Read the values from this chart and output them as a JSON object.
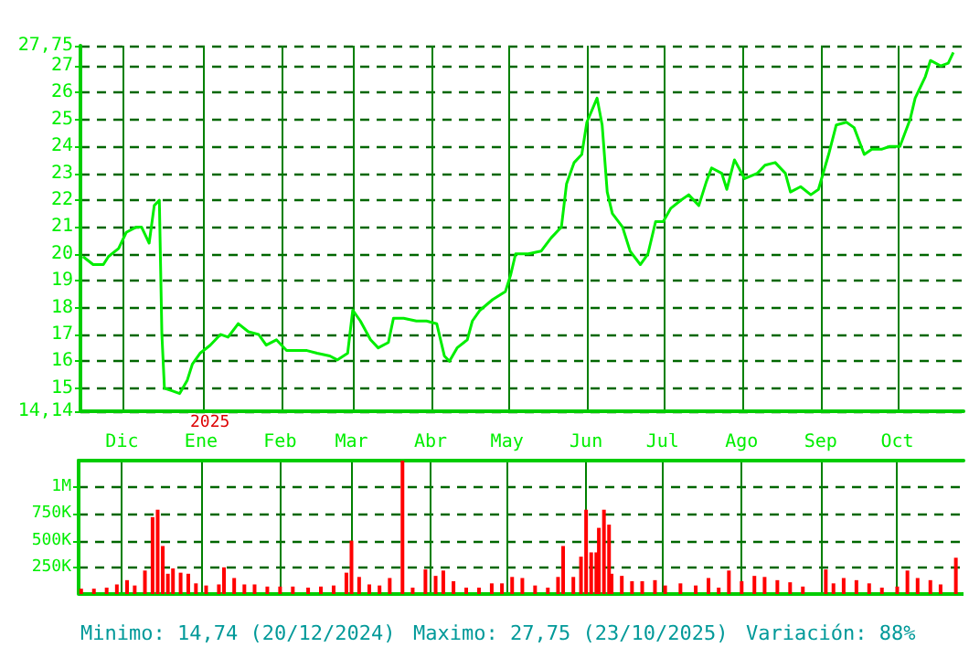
{
  "chart_data": [
    {
      "type": "line",
      "color": "#00ee00",
      "grid": true,
      "marker": "none",
      "line_style": "solid",
      "tick_labels": "y",
      "xlim": [
        "2024-11-14",
        "2025-10-27"
      ],
      "xticks": [
        {
          "value": "2024-12-01",
          "label": null
        },
        {
          "value": "2025-01-01",
          "label": null
        },
        {
          "value": "2025-02-01",
          "label": null
        },
        {
          "value": "2025-03-01",
          "label": null
        },
        {
          "value": "2025-04-01",
          "label": null
        },
        {
          "value": "2025-05-01",
          "label": null
        },
        {
          "value": "2025-06-01",
          "label": null
        },
        {
          "value": "2025-07-01",
          "label": null
        },
        {
          "value": "2025-08-01",
          "label": null
        },
        {
          "value": "2025-09-01",
          "label": null
        },
        {
          "value": "2025-10-01",
          "label": null
        }
      ],
      "ylim": [
        14.14,
        27.75
      ],
      "yticks": [
        {
          "value": 14.14,
          "label": "14,14"
        },
        15,
        16,
        17,
        18,
        19,
        20,
        21,
        22,
        23,
        24,
        25,
        26,
        27,
        {
          "value": 27.75,
          "label": "27,75"
        }
      ],
      "x": [
        "2024-11-15",
        "2024-11-19",
        "2024-11-23",
        "2024-11-25",
        "2024-11-29",
        "2024-12-02",
        "2024-12-06",
        "2024-12-08",
        "2024-12-11",
        "2024-12-13",
        "2024-12-15",
        "2024-12-16",
        "2024-12-17",
        "2024-12-20",
        "2024-12-23",
        "2024-12-26",
        "2024-12-28",
        "2024-12-31",
        "2025-01-04",
        "2025-01-08",
        "2025-01-11",
        "2025-01-15",
        "2025-01-19",
        "2025-01-23",
        "2025-01-26",
        "2025-01-30",
        "2025-02-03",
        "2025-02-06",
        "2025-02-11",
        "2025-02-15",
        "2025-02-20",
        "2025-02-23",
        "2025-02-27",
        "2025-03-01",
        "2025-03-04",
        "2025-03-08",
        "2025-03-11",
        "2025-03-15",
        "2025-03-17",
        "2025-03-21",
        "2025-03-26",
        "2025-03-30",
        "2025-04-03",
        "2025-04-06",
        "2025-04-08",
        "2025-04-11",
        "2025-04-15",
        "2025-04-17",
        "2025-04-20",
        "2025-04-25",
        "2025-04-30",
        "2025-05-02",
        "2025-05-04",
        "2025-05-09",
        "2025-05-14",
        "2025-05-18",
        "2025-05-22",
        "2025-05-24",
        "2025-05-27",
        "2025-05-30",
        "2025-06-01",
        "2025-06-05",
        "2025-06-07",
        "2025-06-09",
        "2025-06-11",
        "2025-06-15",
        "2025-06-18",
        "2025-06-22",
        "2025-06-25",
        "2025-06-28",
        "2025-07-01",
        "2025-07-04",
        "2025-07-08",
        "2025-07-11",
        "2025-07-15",
        "2025-07-18",
        "2025-07-20",
        "2025-07-24",
        "2025-07-26",
        "2025-07-29",
        "2025-08-02",
        "2025-08-07",
        "2025-08-10",
        "2025-08-14",
        "2025-08-18",
        "2025-08-20",
        "2025-08-24",
        "2025-08-28",
        "2025-08-31",
        "2025-09-04",
        "2025-09-07",
        "2025-09-11",
        "2025-09-14",
        "2025-09-18",
        "2025-09-21",
        "2025-09-25",
        "2025-09-28",
        "2025-10-02",
        "2025-10-06",
        "2025-10-08",
        "2025-10-12",
        "2025-10-14",
        "2025-10-18",
        "2025-10-21",
        "2025-10-23"
      ],
      "values": [
        19.9,
        19.6,
        19.6,
        19.9,
        20.2,
        20.8,
        21.0,
        21.0,
        20.4,
        21.8,
        22.0,
        17.0,
        15.0,
        14.9,
        14.8,
        15.3,
        15.9,
        16.3,
        16.6,
        17.0,
        16.9,
        17.4,
        17.1,
        17.0,
        16.6,
        16.8,
        16.4,
        16.4,
        16.4,
        16.3,
        16.2,
        16.05,
        16.3,
        17.9,
        17.5,
        16.8,
        16.5,
        16.7,
        17.6,
        17.6,
        17.5,
        17.5,
        17.4,
        16.2,
        16.0,
        16.5,
        16.8,
        17.5,
        17.9,
        18.3,
        18.6,
        19.2,
        20.0,
        20.0,
        20.1,
        20.6,
        21.0,
        22.6,
        23.4,
        23.7,
        24.9,
        25.8,
        24.8,
        22.3,
        21.5,
        21.0,
        20.1,
        19.6,
        20.0,
        21.2,
        21.2,
        21.7,
        22.0,
        22.2,
        21.8,
        22.7,
        23.2,
        23.0,
        22.4,
        23.5,
        22.8,
        23.0,
        23.3,
        23.4,
        23.0,
        22.3,
        22.5,
        22.2,
        22.4,
        23.7,
        24.8,
        24.9,
        24.7,
        23.7,
        23.9,
        23.9,
        24.0,
        24.0,
        25.0,
        25.8,
        26.6,
        27.2,
        27.0,
        27.1,
        27.5
      ],
      "annotations": [
        "2025"
      ]
    },
    {
      "type": "bar",
      "color": "#ff0000",
      "grid": true,
      "xlim": [
        "2024-11-14",
        "2025-10-27"
      ],
      "xticks": [
        {
          "value": "2024-12-01",
          "label": "Dic"
        },
        {
          "value": "2025-01-01",
          "label": "Ene"
        },
        {
          "value": "2025-02-01",
          "label": "Feb"
        },
        {
          "value": "2025-03-01",
          "label": "Mar"
        },
        {
          "value": "2025-04-01",
          "label": "Abr"
        },
        {
          "value": "2025-05-01",
          "label": "May"
        },
        {
          "value": "2025-06-01",
          "label": "Jun"
        },
        {
          "value": "2025-07-01",
          "label": "Jul"
        },
        {
          "value": "2025-08-01",
          "label": "Ago"
        },
        {
          "value": "2025-09-01",
          "label": "Sep"
        },
        {
          "value": "2025-10-01",
          "label": "Oct"
        }
      ],
      "ylim": [
        0,
        1250000
      ],
      "yticks": [
        {
          "value": 250000,
          "label": "250K"
        },
        {
          "value": 500000,
          "label": "500K"
        },
        {
          "value": 750000,
          "label": "750K"
        },
        {
          "value": 1000000,
          "label": "1M"
        }
      ],
      "x": [
        "2024-11-15",
        "2024-11-20",
        "2024-11-25",
        "2024-11-29",
        "2024-12-03",
        "2024-12-06",
        "2024-12-10",
        "2024-12-13",
        "2024-12-15",
        "2024-12-17",
        "2024-12-19",
        "2024-12-21",
        "2024-12-24",
        "2024-12-27",
        "2024-12-30",
        "2025-01-03",
        "2025-01-08",
        "2025-01-10",
        "2025-01-14",
        "2025-01-18",
        "2025-01-22",
        "2025-01-27",
        "2025-02-01",
        "2025-02-06",
        "2025-02-12",
        "2025-02-17",
        "2025-02-22",
        "2025-02-27",
        "2025-03-01",
        "2025-03-04",
        "2025-03-08",
        "2025-03-12",
        "2025-03-16",
        "2025-03-21",
        "2025-03-25",
        "2025-03-30",
        "2025-04-03",
        "2025-04-06",
        "2025-04-10",
        "2025-04-15",
        "2025-04-20",
        "2025-04-25",
        "2025-04-29",
        "2025-05-03",
        "2025-05-07",
        "2025-05-12",
        "2025-05-17",
        "2025-05-21",
        "2025-05-23",
        "2025-05-27",
        "2025-05-30",
        "2025-06-01",
        "2025-06-03",
        "2025-06-05",
        "2025-06-06",
        "2025-06-08",
        "2025-06-10",
        "2025-06-11",
        "2025-06-15",
        "2025-06-19",
        "2025-06-23",
        "2025-06-28",
        "2025-07-02",
        "2025-07-08",
        "2025-07-14",
        "2025-07-19",
        "2025-07-23",
        "2025-07-27",
        "2025-08-01",
        "2025-08-06",
        "2025-08-10",
        "2025-08-15",
        "2025-08-20",
        "2025-08-25",
        "2025-09-03",
        "2025-09-06",
        "2025-09-10",
        "2025-09-15",
        "2025-09-20",
        "2025-09-25",
        "2025-10-01",
        "2025-10-05",
        "2025-10-09",
        "2025-10-14",
        "2025-10-18",
        "2025-10-24"
      ],
      "values": [
        50000,
        50000,
        60000,
        90000,
        130000,
        80000,
        220000,
        720000,
        790000,
        450000,
        190000,
        240000,
        200000,
        190000,
        100000,
        80000,
        90000,
        250000,
        150000,
        90000,
        90000,
        70000,
        70000,
        70000,
        60000,
        70000,
        80000,
        200000,
        500000,
        160000,
        90000,
        80000,
        150000,
        1250000,
        60000,
        230000,
        170000,
        220000,
        120000,
        60000,
        60000,
        100000,
        100000,
        160000,
        150000,
        80000,
        60000,
        160000,
        450000,
        160000,
        350000,
        790000,
        390000,
        390000,
        620000,
        790000,
        650000,
        190000,
        170000,
        120000,
        120000,
        130000,
        80000,
        100000,
        80000,
        150000,
        60000,
        220000,
        120000,
        170000,
        160000,
        130000,
        110000,
        70000,
        230000,
        100000,
        150000,
        130000,
        100000,
        60000,
        70000,
        220000,
        150000,
        130000,
        90000,
        340000
      ],
      "annotations": [
        "Minimo: 14,74 (20/12/2024)",
        "Maximo: 27,75 (23/10/2025)",
        "Variación: 88%"
      ]
    }
  ]
}
